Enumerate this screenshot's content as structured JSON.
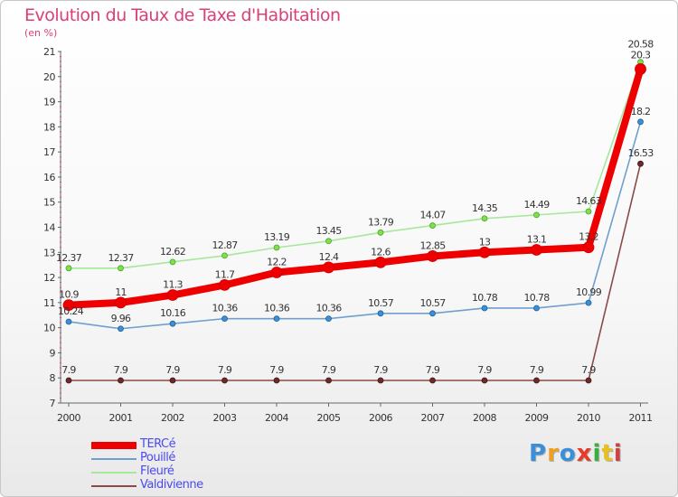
{
  "header": {
    "title": "Evolution du Taux de Taxe d'Habitation",
    "unit": "(en %)"
  },
  "logo": {
    "text": "Proxiti",
    "colors": [
      "#3a8fd8",
      "#f0a020",
      "#3a8fd8",
      "#e83a2a",
      "#3ab040",
      "#e8c020",
      "#d04040"
    ]
  },
  "chart_data": {
    "type": "line",
    "title": "Evolution du Taux de Taxe d'Habitation",
    "ylabel": "(en %)",
    "xlabel": "",
    "ylim": [
      7,
      21
    ],
    "yticks": [
      "7",
      "8",
      "9",
      "10",
      "11",
      "12",
      "13",
      "14",
      "15",
      "16",
      "17",
      "18",
      "19",
      "20",
      "21"
    ],
    "categories": [
      "2000",
      "2001",
      "2002",
      "2003",
      "2004",
      "2005",
      "2006",
      "2007",
      "2008",
      "2009",
      "2010",
      "2011"
    ],
    "grid": false,
    "legend_position": "bottom-left",
    "series": [
      {
        "name": "TERCé",
        "color": "#ee0000",
        "values": [
          10.9,
          11,
          11.3,
          11.7,
          12.2,
          12.4,
          12.6,
          12.85,
          13,
          13.1,
          13.2,
          20.3
        ],
        "labels": [
          "10.9",
          "11",
          "11.3",
          "11.7",
          "12.2",
          "12.4",
          "12.6",
          "12.85",
          "13",
          "13.1",
          "13.2",
          "20.3"
        ]
      },
      {
        "name": "Pouillé",
        "color": "#6f9fcf",
        "values": [
          10.24,
          9.96,
          10.16,
          10.36,
          10.36,
          10.36,
          10.57,
          10.57,
          10.78,
          10.78,
          10.99,
          18.2
        ],
        "labels": [
          "10.24",
          "9.96",
          "10.16",
          "10.36",
          "10.36",
          "10.36",
          "10.57",
          "10.57",
          "10.78",
          "10.78",
          "10.99",
          "18.2"
        ]
      },
      {
        "name": "Fleuré",
        "color": "#a6e89a",
        "values": [
          12.37,
          12.37,
          12.62,
          12.87,
          13.19,
          13.45,
          13.79,
          14.07,
          14.35,
          14.49,
          14.63,
          20.58
        ],
        "labels": [
          "12.37",
          "12.37",
          "12.62",
          "12.87",
          "13.19",
          "13.45",
          "13.79",
          "14.07",
          "14.35",
          "14.49",
          "14.63",
          "20.58"
        ]
      },
      {
        "name": "Valdivienne",
        "color": "#8a4a4a",
        "values": [
          7.9,
          7.9,
          7.9,
          7.9,
          7.9,
          7.9,
          7.9,
          7.9,
          7.9,
          7.9,
          7.9,
          16.53
        ],
        "labels": [
          "7.9",
          "7.9",
          "7.9",
          "7.9",
          "7.9",
          "7.9",
          "7.9",
          "7.9",
          "7.9",
          "7.9",
          "7.9",
          "16.53"
        ]
      }
    ]
  }
}
